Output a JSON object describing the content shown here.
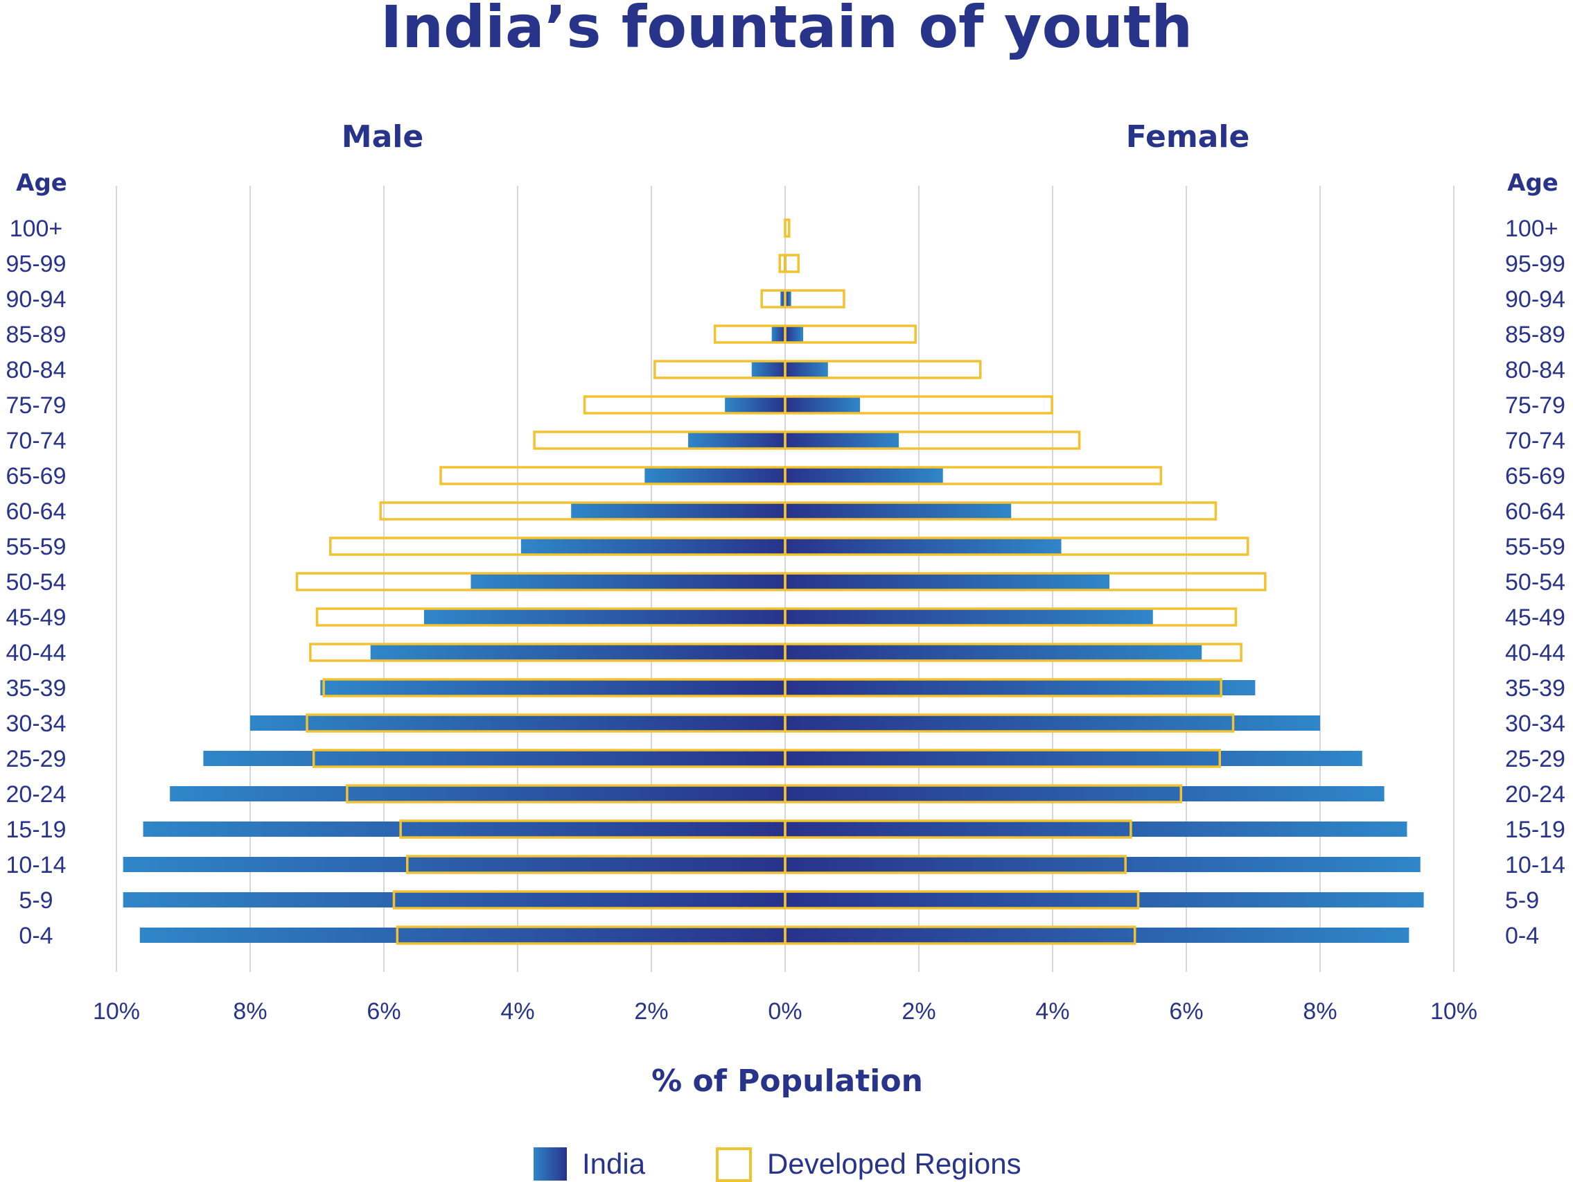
{
  "chart_data": {
    "type": "bar",
    "title": "India’s fountain of youth",
    "left_label": "Male",
    "right_label": "Female",
    "age_header": "Age",
    "xlabel": "% of Population",
    "xlim": [
      -10,
      10
    ],
    "x_ticks": [
      "10%",
      "8%",
      "6%",
      "4%",
      "2%",
      "0%",
      "2%",
      "4%",
      "6%",
      "8%",
      "10%"
    ],
    "grid": true,
    "legend_position": "bottom",
    "categories": [
      "100+",
      "95-99",
      "90-94",
      "85-89",
      "80-84",
      "75-79",
      "70-74",
      "65-69",
      "60-64",
      "55-59",
      "50-54",
      "45-49",
      "40-44",
      "35-39",
      "30-34",
      "25-29",
      "20-24",
      "15-19",
      "10-14",
      "5-9",
      "0-4"
    ],
    "series": [
      {
        "name": "India",
        "style": "filled",
        "male": [
          0.0,
          0.02,
          0.07,
          0.2,
          0.5,
          0.9,
          1.45,
          2.1,
          3.2,
          3.95,
          4.7,
          5.4,
          6.2,
          6.95,
          8.0,
          8.7,
          9.2,
          9.6,
          9.9,
          9.9,
          9.65
        ],
        "female": [
          0.0,
          0.02,
          0.09,
          0.27,
          0.64,
          1.12,
          1.7,
          2.36,
          3.38,
          4.13,
          4.85,
          5.5,
          6.23,
          7.03,
          8.0,
          8.63,
          8.96,
          9.3,
          9.5,
          9.55,
          9.33
        ]
      },
      {
        "name": "Developed Regions",
        "style": "outline",
        "male": [
          0.0,
          0.08,
          0.35,
          1.05,
          1.95,
          3.0,
          3.75,
          5.15,
          6.05,
          6.8,
          7.3,
          7.0,
          7.1,
          6.9,
          7.15,
          7.05,
          6.55,
          5.75,
          5.65,
          5.85,
          5.8
        ],
        "female": [
          0.06,
          0.2,
          0.88,
          1.95,
          2.92,
          3.99,
          4.4,
          5.62,
          6.44,
          6.92,
          7.18,
          6.74,
          6.82,
          6.52,
          6.7,
          6.5,
          5.92,
          5.17,
          5.09,
          5.28,
          5.23
        ]
      }
    ]
  },
  "colors": {
    "title": "#28338a",
    "india_light": "#2f86c8",
    "india_dark": "#28338a",
    "developed_outline": "#f2c230",
    "grid": "#d6d6d6"
  }
}
